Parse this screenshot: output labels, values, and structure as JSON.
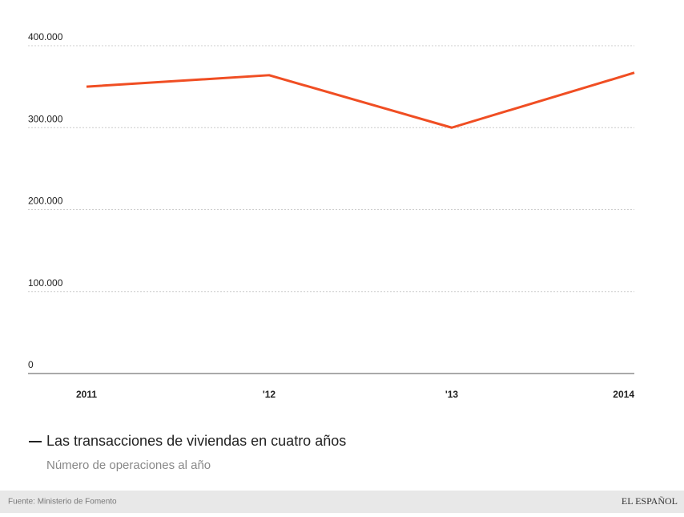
{
  "chart_data": {
    "type": "line",
    "title": "Las transacciones de viviendas en cuatro años",
    "subtitle": "Número de operaciones al año",
    "source": "Fuente: Ministerio de Fomento",
    "brand": "EL ESPAÑOL",
    "categories": [
      "2011",
      "'12",
      "'13",
      "2014"
    ],
    "values": [
      350000,
      364000,
      300000,
      367000
    ],
    "color": "#f04e23",
    "ylim": [
      0,
      400000
    ],
    "yticks": [
      0,
      {
        "value": 100000,
        "label": "100.000"
      },
      {
        "value": 200000,
        "label": "200.000"
      },
      {
        "value": 300000,
        "label": "300.000"
      },
      {
        "value": 400000,
        "label": "400.000"
      }
    ],
    "grid": true
  }
}
